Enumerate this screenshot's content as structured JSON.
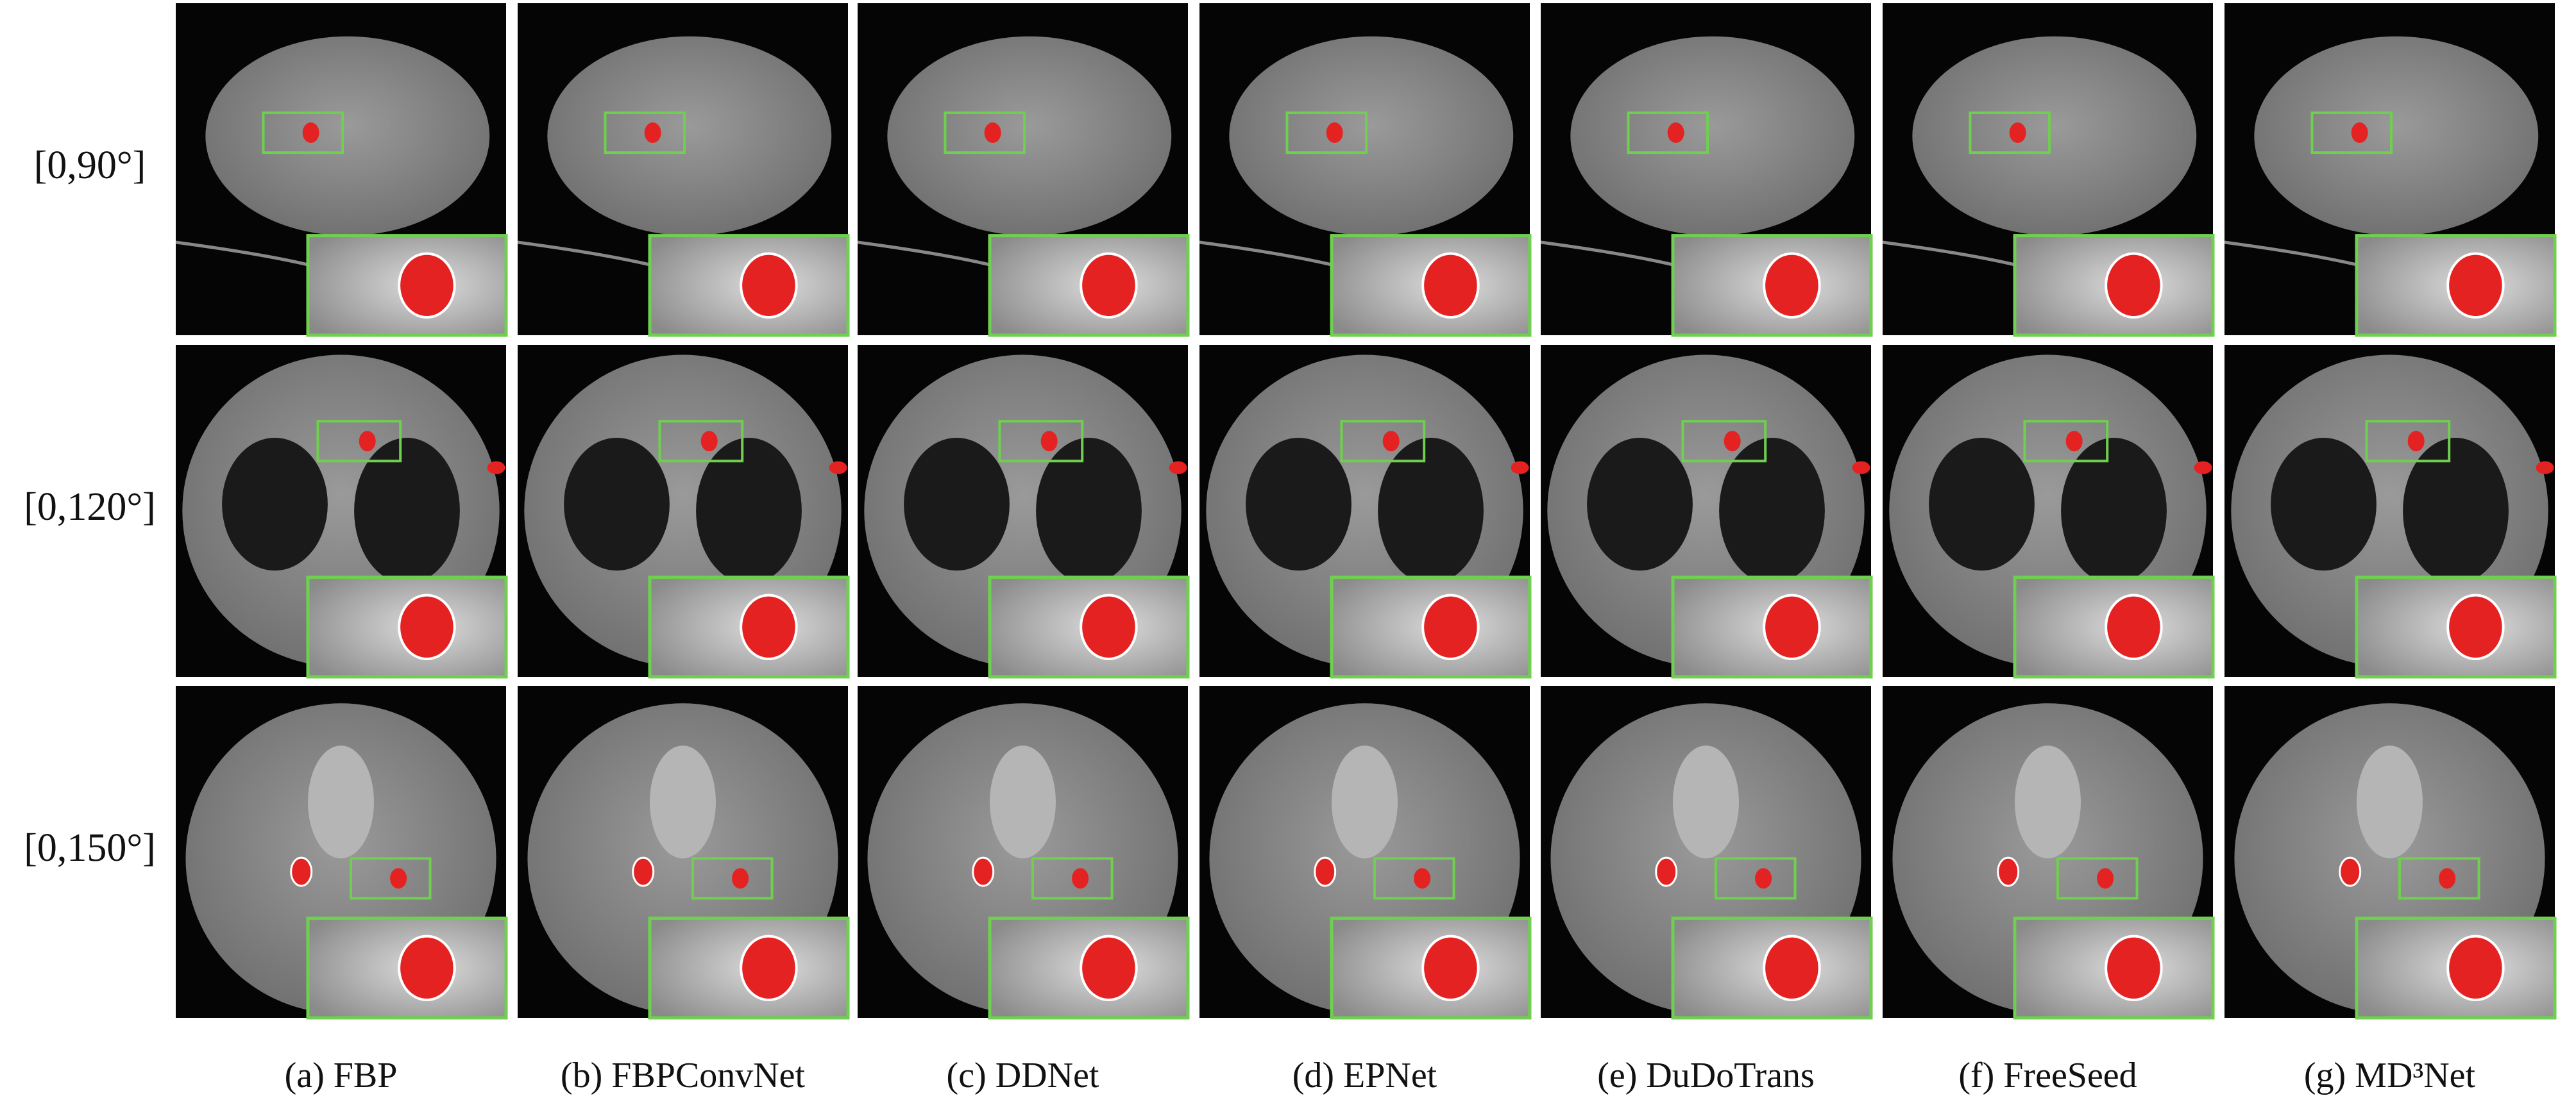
{
  "figure": {
    "row_labels": [
      "[0,90°]",
      "[0,120°]",
      "[0,150°]"
    ],
    "captions": [
      "(a) FBP",
      "(b) FBPConvNet",
      "(c) DDNet",
      "(d) EPNet",
      "(e) DuDoTrans",
      "(f) FreeSeed",
      "(g) MD³Net"
    ]
  }
}
